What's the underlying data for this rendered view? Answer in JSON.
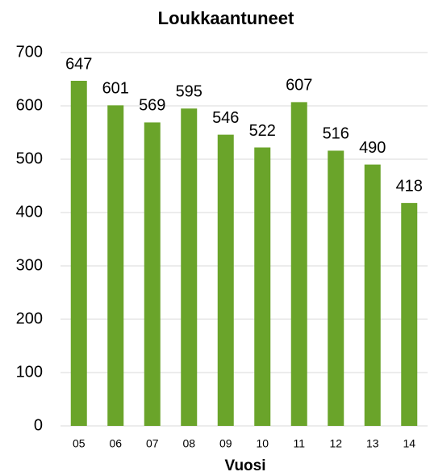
{
  "chart_data": {
    "type": "bar",
    "title": "Loukkaantuneet",
    "x_label": "Vuosi",
    "categories": [
      "05",
      "06",
      "07",
      "08",
      "09",
      "10",
      "11",
      "12",
      "13",
      "14"
    ],
    "values": [
      647,
      601,
      569,
      595,
      546,
      522,
      607,
      516,
      490,
      418
    ],
    "color": "#6aa42a",
    "ylim": [
      0,
      700
    ],
    "yticks": [
      0,
      100,
      200,
      300,
      400,
      500,
      600,
      700
    ],
    "grid": true
  }
}
